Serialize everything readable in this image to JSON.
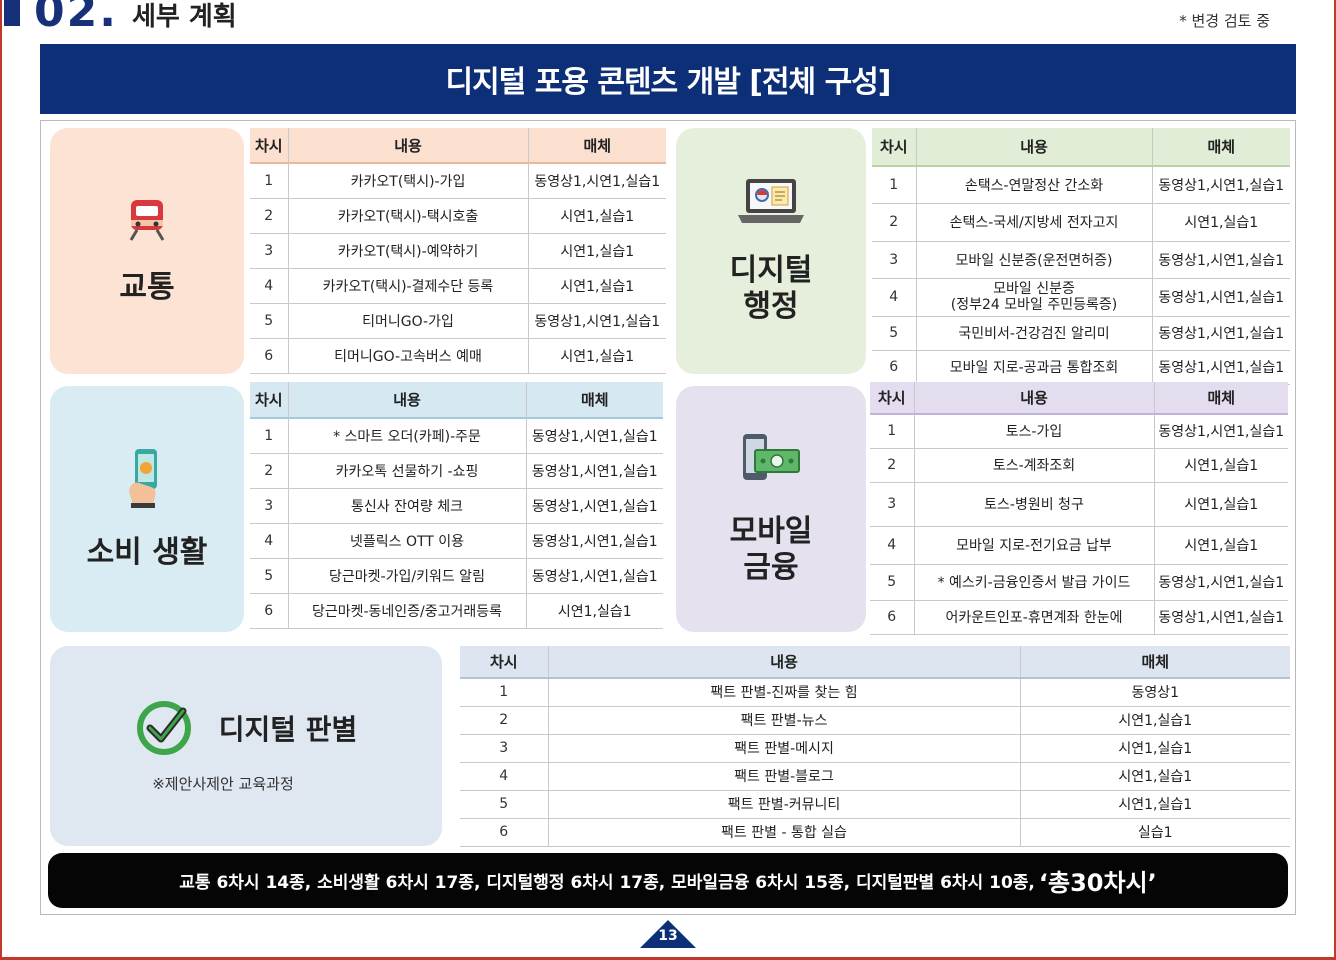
{
  "header": {
    "section_number": "02.",
    "section_title": "세부 계획",
    "note": "* 변경 검토 중"
  },
  "banner": {
    "title": "디지털 포용 콘텐츠 개발 [전체 구성]"
  },
  "columns": {
    "no": "차시",
    "content": "내용",
    "media": "매체"
  },
  "categories": {
    "traffic": {
      "label": "교통",
      "icon": "train-icon",
      "rows": [
        {
          "no": "1",
          "content": "카카오T(택시)-가입",
          "media": "동영상1,시연1,실습1"
        },
        {
          "no": "2",
          "content": "카카오T(택시)-택시호출",
          "media": "시연1,실습1"
        },
        {
          "no": "3",
          "content": "카카오T(택시)-예약하기",
          "media": "시연1,실습1"
        },
        {
          "no": "4",
          "content": "카카오T(택시)-결제수단 등록",
          "media": "시연1,실습1"
        },
        {
          "no": "5",
          "content": "티머니GO-가입",
          "media": "동영상1,시연1,실습1"
        },
        {
          "no": "6",
          "content": "티머니GO-고속버스 예매",
          "media": "시연1,실습1"
        }
      ]
    },
    "admin": {
      "label": "디지털\n행정",
      "icon": "laptop-icon",
      "rows": [
        {
          "no": "1",
          "content": "손택스-연말정산 간소화",
          "media": "동영상1,시연1,실습1"
        },
        {
          "no": "2",
          "content": "손택스-국세/지방세 전자고지",
          "media": "시연1,실습1"
        },
        {
          "no": "3",
          "content": "모바일 신분증(운전면허증)",
          "media": "동영상1,시연1,실습1"
        },
        {
          "no": "4",
          "content_line1": "모바일 신분증",
          "content_line2": "(정부24 모바일 주민등록증)",
          "media": "동영상1,시연1,실습1"
        },
        {
          "no": "5",
          "content": "국민비서-건강검진 알리미",
          "media": "동영상1,시연1,실습1"
        },
        {
          "no": "6",
          "content": "모바일 지로-공과금 통합조회",
          "media": "동영상1,시연1,실습1"
        }
      ]
    },
    "consumer": {
      "label": "소비 생활",
      "icon": "phone-payment-icon",
      "rows": [
        {
          "no": "1",
          "content": "* 스마트 오더(카페)-주문",
          "media": "동영상1,시연1,실습1"
        },
        {
          "no": "2",
          "content": "카카오톡 선물하기 -쇼핑",
          "media": "동영상1,시연1,실습1"
        },
        {
          "no": "3",
          "content": "통신사 잔여량 체크",
          "media": "동영상1,시연1,실습1"
        },
        {
          "no": "4",
          "content": "넷플릭스 OTT 이용",
          "media": "동영상1,시연1,실습1"
        },
        {
          "no": "5",
          "content": "당근마켓-가입/키워드 알림",
          "media": "동영상1,시연1,실습1"
        },
        {
          "no": "6",
          "content": "당근마켓-동네인증/중고거래등록",
          "media": "시연1,실습1"
        }
      ]
    },
    "finance": {
      "label": "모바일\n금융",
      "icon": "mobile-money-icon",
      "rows": [
        {
          "no": "1",
          "content": "토스-가입",
          "media": "동영상1,시연1,실습1"
        },
        {
          "no": "2",
          "content": "토스-계좌조회",
          "media": "시연1,실습1"
        },
        {
          "no": "3",
          "content": "토스-병원비 청구",
          "media": "시연1,실습1"
        },
        {
          "no": "4",
          "content": "모바일 지로-전기요금 납부",
          "media": "시연1,실습1"
        },
        {
          "no": "5",
          "content": "* 예스키-금융인증서 발급 가이드",
          "media": "동영상1,시연1,실습1"
        },
        {
          "no": "6",
          "content": "어카운트인포-휴면계좌 한눈에",
          "media": "동영상1,시연1,실습1"
        }
      ]
    },
    "factcheck": {
      "label": "디지털 판별",
      "icon": "checkmark-icon",
      "note": "※제안사제안 교육과정",
      "rows": [
        {
          "no": "1",
          "content": "팩트 판별-진짜를 찾는 힘",
          "media": "동영상1"
        },
        {
          "no": "2",
          "content": "팩트 판별-뉴스",
          "media": "시연1,실습1"
        },
        {
          "no": "3",
          "content": "팩트 판별-메시지",
          "media": "시연1,실습1"
        },
        {
          "no": "4",
          "content": "팩트 판별-블로그",
          "media": "시연1,실습1"
        },
        {
          "no": "5",
          "content": "팩트 판별-커뮤니티",
          "media": "시연1,실습1"
        },
        {
          "no": "6",
          "content": "팩트 판별 - 통합 실습",
          "media": "실습1"
        }
      ]
    }
  },
  "summary": {
    "text": "교통 6차시 14종, 소비생활 6차시 17종, 디지털행정 6차시 17종, 모바일금융 6차시 15종, 디지털판별  6차시 10종,",
    "total": "‘총30차시’"
  },
  "page_number": "13",
  "colors": {
    "navy": "#0c2f78",
    "peach": "#fde3d4",
    "green": "#e6efdc",
    "blue": "#d9ebf3",
    "purple": "#e5e1ef",
    "gray_blue": "#dfe7f1"
  }
}
